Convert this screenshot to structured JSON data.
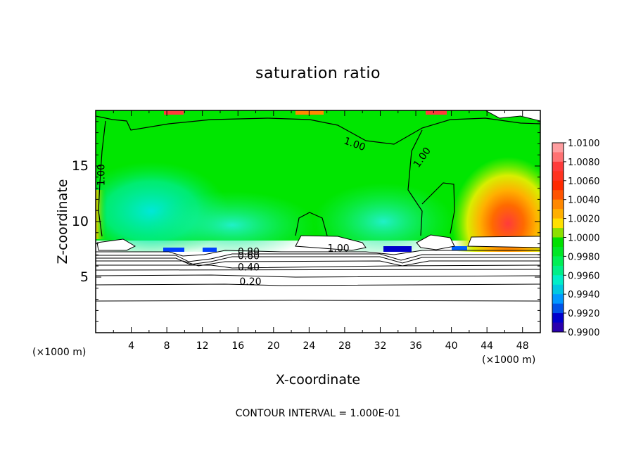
{
  "chart_data": {
    "type": "heatmap",
    "title": "saturation ratio",
    "xlabel": "X-coordinate",
    "ylabel": "Z-coordinate",
    "x_unit": "(×1000 m)",
    "y_unit": "(×1000 m)",
    "xlim": [
      0,
      50
    ],
    "ylim": [
      0,
      20
    ],
    "x_ticks": [
      "4",
      "8",
      "12",
      "16",
      "20",
      "24",
      "28",
      "32",
      "36",
      "40",
      "44",
      "48"
    ],
    "y_ticks": [
      "5",
      "10",
      "15"
    ],
    "colorbar": {
      "labels": [
        "1.0100",
        "1.0080",
        "1.0060",
        "1.0040",
        "1.0020",
        "1.0000",
        "0.9980",
        "0.9960",
        "0.9940",
        "0.9920",
        "0.9900"
      ],
      "colors": [
        "#ff9ea0",
        "#ff3b3b",
        "#ff2a00",
        "#ff8800",
        "#ffe000",
        "#00e000",
        "#00ee55",
        "#00eec8",
        "#0098ff",
        "#0000cc",
        "#5a008a"
      ]
    },
    "contour_labels": [
      {
        "text": "1.00",
        "x": 29,
        "z": 16.7
      },
      {
        "text": "1.00",
        "x": 37,
        "z": 15.6
      },
      {
        "text": "1.00",
        "x": 1,
        "z": 14.2
      },
      {
        "text": "1.00",
        "x": 27.3,
        "z": 7.3
      },
      {
        "text": "0.80",
        "x": 17.2,
        "z": 7.0
      },
      {
        "text": "0.60",
        "x": 17.2,
        "z": 6.6
      },
      {
        "text": "0.40",
        "x": 17.2,
        "z": 5.6
      },
      {
        "text": "0.20",
        "x": 17.4,
        "z": 4.3
      }
    ],
    "contour_interval_label": "CONTOUR INTERVAL = 1.000E-01"
  }
}
